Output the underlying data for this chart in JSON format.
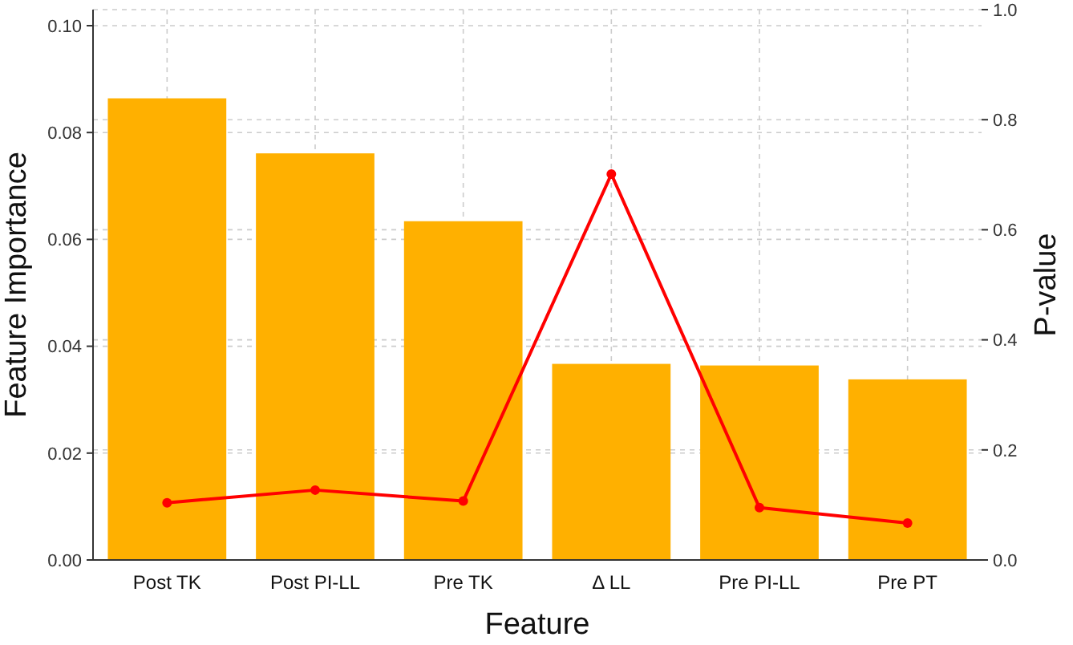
{
  "chart_data": {
    "type": "bar",
    "xlabel": "Feature",
    "ylabel": "Feature Importance",
    "y2label": "P-value",
    "categories": [
      "Post TK",
      "Post PI-LL",
      "Pre TK",
      "Δ LL",
      "Pre PI-LL",
      "Pre PT"
    ],
    "series": [
      {
        "color": "#ffb000",
        "values": [
          0.0864,
          0.0761,
          0.0634,
          0.0367,
          0.0364,
          0.0338
        ]
      },
      {
        "type": "line",
        "axis": "y2",
        "color": "#ff0000",
        "marker": "circle",
        "line_style": "solid",
        "values": [
          0.104,
          0.127,
          0.107,
          0.701,
          0.095,
          0.067
        ]
      }
    ],
    "ylim": [
      0,
      0.103
    ],
    "yticks": [
      {
        "value": 0,
        "label": "0.00"
      },
      {
        "value": 0.02,
        "label": "0.02"
      },
      {
        "value": 0.04,
        "label": "0.04"
      },
      {
        "value": 0.06,
        "label": "0.06"
      },
      {
        "value": 0.08,
        "label": "0.08"
      },
      {
        "value": 0.1,
        "label": "0.10"
      }
    ],
    "y2lim": [
      0,
      1.0
    ],
    "y2ticks": [
      {
        "value": 0,
        "label": "0.0"
      },
      {
        "value": 0.2,
        "label": "0.2"
      },
      {
        "value": 0.4,
        "label": "0.4"
      },
      {
        "value": 0.6,
        "label": "0.6"
      },
      {
        "value": 0.8,
        "label": "0.8"
      },
      {
        "value": 1.0,
        "label": "1.0"
      }
    ],
    "grid": true
  }
}
